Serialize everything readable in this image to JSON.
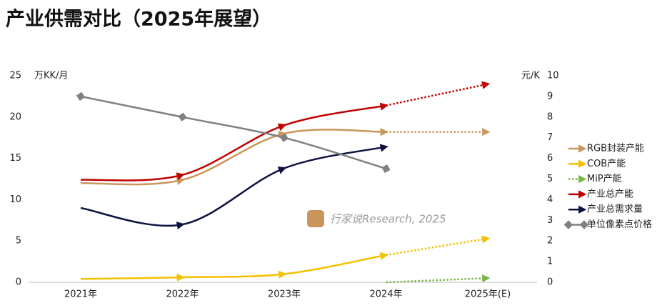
{
  "chart_data": {
    "type": "line",
    "title": "产业供需对比（2025年展望）",
    "y_label": "万KK/月",
    "y2_label": "元/K",
    "watermark": "行家说Research, 2025",
    "categories": [
      "2021年",
      "2022年",
      "2023年",
      "2024年",
      "2025年(E)"
    ],
    "ylim": [
      0,
      25
    ],
    "yticks": [
      0,
      5,
      10,
      15,
      20,
      25
    ],
    "y2lim": [
      0,
      10
    ],
    "y2ticks": [
      0,
      1,
      2,
      3,
      4,
      5,
      6,
      7,
      8,
      9,
      10
    ],
    "dotted_after": "2024年",
    "series": [
      {
        "name": "RGB封装产能",
        "color": "#c8965a",
        "marker": "arrow",
        "values": [
          12.0,
          12.4,
          18.0,
          18.2,
          18.2
        ]
      },
      {
        "name": "COB产能",
        "color": "#f5c000",
        "marker": "arrow",
        "values": [
          0.4,
          0.6,
          1.0,
          3.3,
          5.3
        ]
      },
      {
        "name": "MiP产能",
        "color": "#7ab648",
        "marker": "arrow",
        "values": [
          null,
          null,
          null,
          0,
          0.5
        ]
      },
      {
        "name": "产业总产能",
        "color": "#c00000",
        "marker": "arrow",
        "values": [
          12.4,
          13.0,
          19.0,
          21.4,
          24.0
        ]
      },
      {
        "name": "产业总需求量",
        "color": "#0d1240",
        "marker": "arrow",
        "values": [
          9.0,
          7.0,
          13.8,
          16.4,
          null
        ]
      },
      {
        "name": "单位像素点价格",
        "color": "#808080",
        "marker": "diamond",
        "axis": "y2",
        "values": [
          9.0,
          8.0,
          7.0,
          5.5,
          null
        ]
      }
    ]
  }
}
